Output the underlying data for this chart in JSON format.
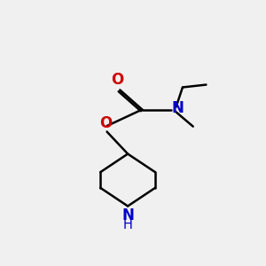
{
  "bg_color": "#f0f0f0",
  "bond_color": "#000000",
  "O_color": "#cc0000",
  "N_color": "#0000cc",
  "NH_color": "#0000cc",
  "line_width": 1.8,
  "font_size": 11,
  "xlim": [
    0,
    10
  ],
  "ylim": [
    0,
    10
  ],
  "figsize": [
    3.0,
    3.0
  ],
  "dpi": 100
}
